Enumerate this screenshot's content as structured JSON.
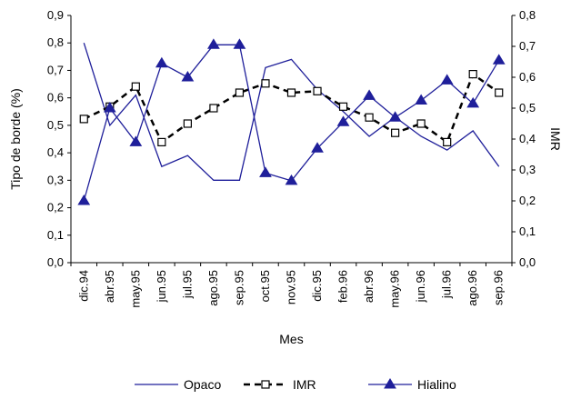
{
  "chart_data": {
    "type": "line",
    "categories": [
      "dic.94",
      "abr.95",
      "may.95",
      "jun.95",
      "jul.95",
      "ago.95",
      "sep.95",
      "oct.95",
      "nov.95",
      "dic.95",
      "feb.96",
      "abr.96",
      "may.96",
      "jun.96",
      "jul.96",
      "ago.96",
      "sep.96"
    ],
    "xlabel": "Mes",
    "ylabel": "Tipo de borde (%)",
    "y2label": "IMR",
    "ylim": [
      0,
      0.9
    ],
    "y2lim": [
      0,
      0.8
    ],
    "yticks": [
      "0,0",
      "0,1",
      "0,2",
      "0,3",
      "0,4",
      "0,5",
      "0,6",
      "0,7",
      "0,8",
      "0,9"
    ],
    "y2ticks": [
      "0,0",
      "0,1",
      "0,2",
      "0,3",
      "0,4",
      "0,5",
      "0,6",
      "0,7",
      "0,8"
    ],
    "grid": false,
    "legend_position": "bottom",
    "series": [
      {
        "name": "Opaco",
        "axis": "left",
        "style": "solid",
        "marker": "none",
        "color": "#1f1f9a",
        "values": [
          0.8,
          0.5,
          0.61,
          0.35,
          0.39,
          0.3,
          0.3,
          0.71,
          0.74,
          0.63,
          0.55,
          0.46,
          0.53,
          0.46,
          0.41,
          0.48,
          0.35
        ]
      },
      {
        "name": "IMR",
        "axis": "right",
        "style": "dashed",
        "marker": "open-square",
        "color": "#000000",
        "values": [
          0.465,
          0.505,
          0.57,
          0.39,
          0.45,
          0.5,
          0.55,
          0.58,
          0.55,
          0.555,
          0.505,
          0.47,
          0.42,
          0.45,
          0.39,
          0.61,
          0.55
        ]
      },
      {
        "name": "Hialino",
        "axis": "right",
        "style": "solid",
        "marker": "filled-triangle",
        "color": "#1f1f9a",
        "values": [
          0.2,
          0.5,
          0.39,
          0.645,
          0.6,
          0.705,
          0.705,
          0.29,
          0.265,
          0.37,
          0.455,
          0.54,
          0.47,
          0.525,
          0.59,
          0.515,
          0.655
        ]
      }
    ]
  }
}
